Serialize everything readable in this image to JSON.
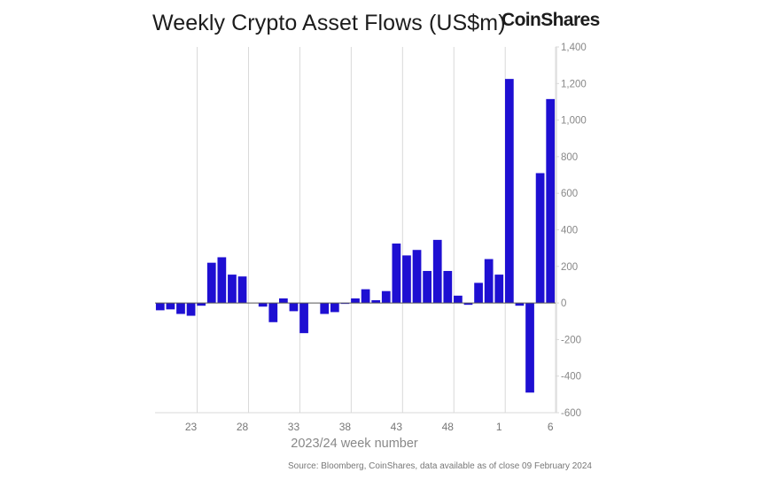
{
  "header": {
    "title": "Weekly Crypto Asset Flows (US$m)",
    "brand": "CoinShares"
  },
  "footer": {
    "source": "Source: Bloomberg, CoinShares, data available as of close 09 February 2024"
  },
  "colors": {
    "bar": "#1e0fd2",
    "grid": "#d9d9d9",
    "zero_line": "#555555"
  },
  "chart_data": {
    "type": "bar",
    "title": "Weekly Crypto Asset Flows (US$m)",
    "xlabel": "2023/24 week number",
    "ylabel": "",
    "ylim": [
      -600,
      1400
    ],
    "yticks": [
      -600,
      -400,
      -200,
      0,
      200,
      400,
      600,
      800,
      1000,
      1200,
      1400
    ],
    "ytick_labels": [
      "-600",
      "-400",
      "-200",
      "0",
      "200",
      "400",
      "600",
      "800",
      "1,000",
      "1,200",
      "1,400"
    ],
    "grid": "vertical",
    "categories": [
      "20",
      "21",
      "22",
      "23",
      "24",
      "25",
      "26",
      "27",
      "28",
      "29",
      "30",
      "31",
      "32",
      "33",
      "34",
      "35",
      "36",
      "37",
      "38",
      "39",
      "40",
      "41",
      "42",
      "43",
      "44",
      "45",
      "46",
      "47",
      "48",
      "49",
      "50",
      "51",
      "52",
      "1",
      "2",
      "3",
      "4",
      "5",
      "6"
    ],
    "xtick_labels": [
      "23",
      "28",
      "33",
      "38",
      "43",
      "48",
      "1",
      "6"
    ],
    "values": [
      -40,
      -35,
      -60,
      -70,
      -15,
      220,
      250,
      155,
      145,
      0,
      -20,
      -105,
      25,
      -45,
      -165,
      0,
      -60,
      -50,
      -5,
      25,
      75,
      15,
      65,
      325,
      260,
      290,
      175,
      345,
      175,
      40,
      -10,
      110,
      240,
      155,
      1225,
      -15,
      -490,
      710,
      1115
    ]
  }
}
